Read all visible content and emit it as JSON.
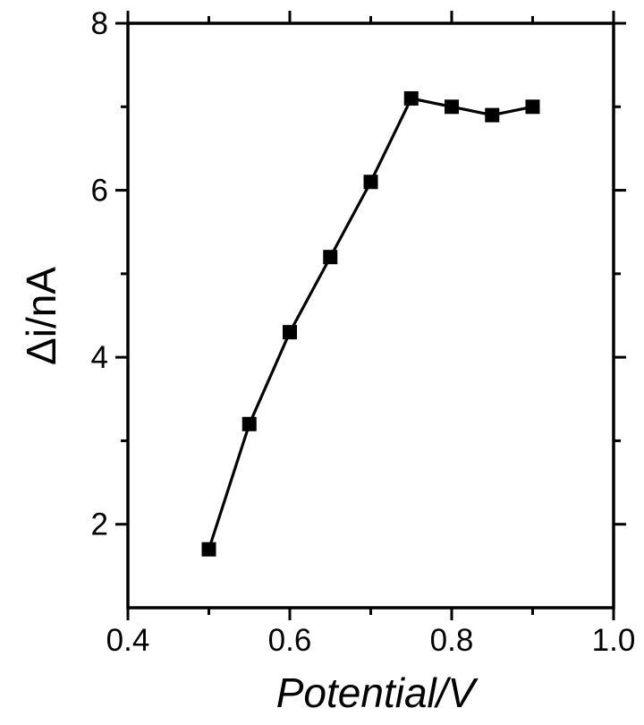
{
  "chart_data": {
    "type": "line",
    "title": "",
    "xlabel": "Potential/V",
    "ylabel": "Δi/nA",
    "xlim": [
      0.4,
      1.0
    ],
    "ylim": [
      1.0,
      8.0
    ],
    "xticks": [
      0.4,
      0.6,
      0.8,
      1.0
    ],
    "xtick_labels": [
      "0.4",
      "0.6",
      "0.8",
      "1.0"
    ],
    "yticks": [
      2,
      4,
      6,
      8
    ],
    "ytick_labels": [
      "2",
      "4",
      "6",
      "8"
    ],
    "grid": false,
    "legend": "none",
    "marker": "square",
    "series_color": "#000000",
    "series": [
      {
        "x": [
          0.5,
          0.55,
          0.6,
          0.65,
          0.7,
          0.75,
          0.8,
          0.85,
          0.9
        ],
        "y": [
          1.7,
          3.2,
          4.3,
          5.2,
          6.1,
          7.1,
          7.0,
          6.9,
          7.0
        ]
      }
    ]
  }
}
